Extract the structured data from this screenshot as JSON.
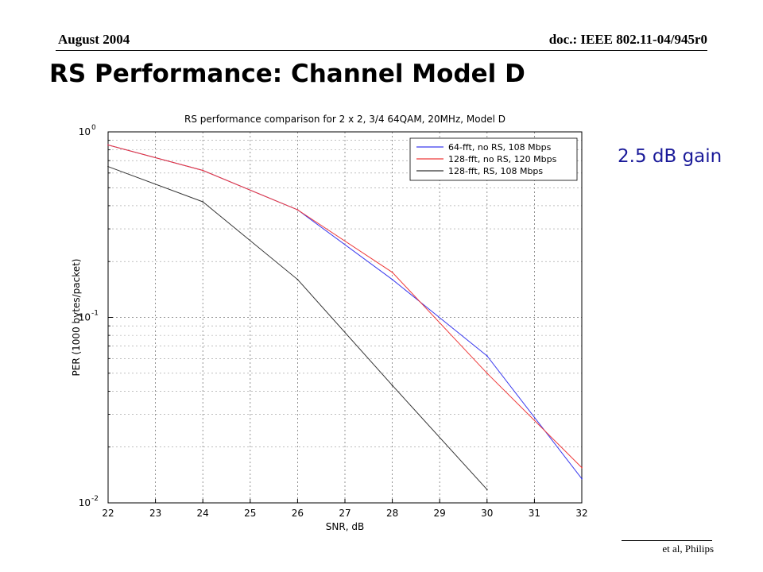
{
  "header": {
    "date": "August 2004",
    "doc_id": "doc.: IEEE 802.11-04/945r0"
  },
  "slide": {
    "title": "RS Performance: Channel Model D",
    "gain_note": "2.5 dB gain",
    "gain_color": "#1a1a99"
  },
  "footer": {
    "text": "et al, Philips"
  },
  "chart_data": {
    "type": "line",
    "title": "RS performance comparison for 2 x 2, 3/4 64QAM, 20MHz, Model D",
    "xlabel": "SNR, dB",
    "ylabel": "PER (1000 bytes/packet)",
    "xlim": [
      22,
      32
    ],
    "ylim": [
      0.01,
      1
    ],
    "yscale": "log",
    "grid": true,
    "legend_position": "top-right",
    "x_ticks": [
      "22",
      "23",
      "24",
      "25",
      "26",
      "27",
      "28",
      "29",
      "30",
      "31",
      "32"
    ],
    "y_ticks": [
      {
        "base": "10",
        "exp": "0"
      },
      {
        "base": "10",
        "exp": "-1"
      },
      {
        "base": "10",
        "exp": "-2"
      }
    ],
    "series": [
      {
        "name": "64-fft, no RS, 108 Mbps",
        "color": "#3a3aee",
        "x": [
          22,
          24,
          26,
          28,
          30,
          32
        ],
        "y": [
          0.85,
          0.62,
          0.38,
          0.16,
          0.062,
          0.0135
        ]
      },
      {
        "name": "128-fft, no RS, 120 Mbps",
        "color": "#ee3a3a",
        "x": [
          22,
          24,
          26,
          28,
          30,
          32
        ],
        "y": [
          0.85,
          0.62,
          0.38,
          0.175,
          0.05,
          0.0155
        ]
      },
      {
        "name": "128-fft, RS, 108 Mbps",
        "color": "#333333",
        "x": [
          22,
          24,
          26,
          28,
          30
        ],
        "y": [
          0.65,
          0.42,
          0.16,
          0.043,
          0.0118
        ]
      }
    ]
  }
}
